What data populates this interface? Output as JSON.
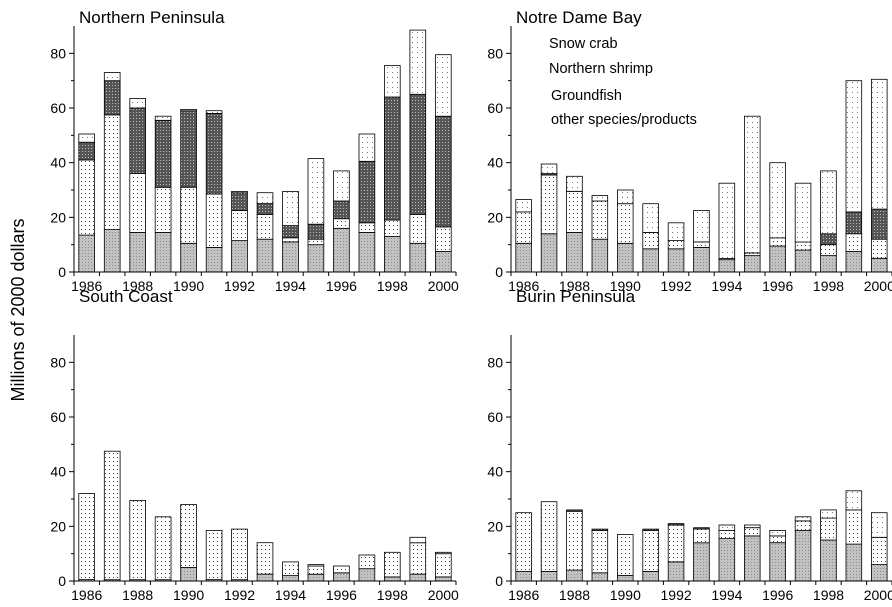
{
  "y_axis_label": "Millions of 2000 dollars",
  "legend": {
    "items": [
      "Snow crab",
      "Northern shrimp",
      "Groundfish",
      "other species/products"
    ]
  },
  "chart_data": [
    {
      "type": "bar",
      "stacked": true,
      "title": "Northern Peninsula",
      "categories": [
        "1986",
        "1987",
        "1988",
        "1989",
        "1990",
        "1991",
        "1992",
        "1993",
        "1994",
        "1995",
        "1996",
        "1997",
        "1998",
        "1999",
        "2000"
      ],
      "x_tick_labels": [
        "1986",
        "1988",
        "1990",
        "1992",
        "1994",
        "1996",
        "1998",
        "2000"
      ],
      "y_tick_labels": [
        "0",
        "20",
        "40",
        "60",
        "80"
      ],
      "ylim": [
        0,
        90
      ],
      "series": [
        {
          "name": "Groundfish",
          "values": [
            13.5,
            15.5,
            14.5,
            14.5,
            10.5,
            9,
            11.5,
            12,
            11,
            10,
            16,
            14.5,
            13,
            10.5,
            7.5
          ]
        },
        {
          "name": "other species/products",
          "values": [
            27.5,
            42,
            21.5,
            16.5,
            20.5,
            19.5,
            11,
            9,
            1.5,
            2,
            3.5,
            3.5,
            6,
            10.5,
            9
          ]
        },
        {
          "name": "Northern shrimp",
          "values": [
            6.5,
            12.5,
            24,
            24.5,
            28,
            29.5,
            6.5,
            4,
            4.5,
            5.5,
            6.5,
            22.5,
            45,
            44,
            40.5
          ]
        },
        {
          "name": "Snow crab",
          "values": [
            3,
            3,
            3.5,
            1.5,
            0.5,
            1,
            0.5,
            4,
            12.5,
            24,
            11,
            10,
            11.5,
            23.5,
            22.5
          ]
        }
      ]
    },
    {
      "type": "bar",
      "stacked": true,
      "title": "Notre Dame Bay",
      "categories": [
        "1986",
        "1987",
        "1988",
        "1989",
        "1990",
        "1991",
        "1992",
        "1993",
        "1994",
        "1995",
        "1996",
        "1997",
        "1998",
        "1999",
        "2000"
      ],
      "x_tick_labels": [
        "1986",
        "1988",
        "1990",
        "1992",
        "1994",
        "1996",
        "1998",
        "2000"
      ],
      "y_tick_labels": [
        "0",
        "20",
        "40",
        "60",
        "80"
      ],
      "ylim": [
        0,
        90
      ],
      "series": [
        {
          "name": "Groundfish",
          "values": [
            10.5,
            14,
            14.5,
            12,
            10.5,
            8.5,
            8.5,
            9,
            4.5,
            6,
            9.5,
            8,
            6,
            7.5,
            5
          ]
        },
        {
          "name": "other species/products",
          "values": [
            11.5,
            21.5,
            15,
            14,
            14.5,
            6,
            3,
            2,
            0.5,
            1,
            3,
            3,
            4,
            6.5,
            7
          ]
        },
        {
          "name": "Northern shrimp",
          "values": [
            0,
            0.5,
            0,
            0,
            0,
            0,
            0,
            0,
            0,
            0,
            0,
            0,
            4,
            8,
            11
          ]
        },
        {
          "name": "Snow crab",
          "values": [
            4.5,
            3.5,
            5.5,
            2,
            5,
            10.5,
            6.5,
            11.5,
            27.5,
            50,
            27.5,
            21.5,
            23,
            48,
            47.5
          ]
        }
      ]
    },
    {
      "type": "bar",
      "stacked": true,
      "title": "South Coast",
      "categories": [
        "1986",
        "1987",
        "1988",
        "1989",
        "1990",
        "1991",
        "1992",
        "1993",
        "1994",
        "1995",
        "1996",
        "1997",
        "1998",
        "1999",
        "2000"
      ],
      "x_tick_labels": [
        "1986",
        "1988",
        "1990",
        "1992",
        "1994",
        "1996",
        "1998",
        "2000"
      ],
      "y_tick_labels": [
        "0",
        "20",
        "40",
        "60",
        "80"
      ],
      "ylim": [
        0,
        90
      ],
      "series": [
        {
          "name": "Groundfish",
          "values": [
            0.5,
            0.5,
            0.5,
            0.5,
            5,
            0.5,
            0.5,
            2.5,
            2,
            2.5,
            3,
            4.5,
            1.5,
            2.5,
            1.5
          ]
        },
        {
          "name": "other species/products",
          "values": [
            31.5,
            47,
            29,
            23,
            23,
            18,
            18.5,
            11.5,
            5,
            3,
            2.5,
            5,
            9,
            11.5,
            8.5
          ]
        },
        {
          "name": "Northern shrimp",
          "values": [
            0,
            0,
            0,
            0,
            0,
            0,
            0,
            0,
            0,
            0,
            0,
            0,
            0,
            0,
            0
          ]
        },
        {
          "name": "Snow crab",
          "values": [
            0,
            0,
            0,
            0,
            0,
            0,
            0,
            0,
            0,
            0.5,
            0,
            0,
            0,
            2,
            0.5
          ]
        }
      ]
    },
    {
      "type": "bar",
      "stacked": true,
      "title": "Burin Peninsula",
      "categories": [
        "1986",
        "1987",
        "1988",
        "1989",
        "1990",
        "1991",
        "1992",
        "1993",
        "1994",
        "1995",
        "1996",
        "1997",
        "1998",
        "1999",
        "2000"
      ],
      "x_tick_labels": [
        "1986",
        "1988",
        "1990",
        "1992",
        "1994",
        "1996",
        "1998",
        "2000"
      ],
      "y_tick_labels": [
        "0",
        "20",
        "40",
        "60",
        "80"
      ],
      "ylim": [
        0,
        90
      ],
      "series": [
        {
          "name": "Groundfish",
          "values": [
            3.5,
            3.5,
            4,
            3,
            2,
            3.5,
            7,
            14,
            15.5,
            16.5,
            14,
            18.5,
            15,
            13.5,
            6
          ]
        },
        {
          "name": "other species/products",
          "values": [
            21.5,
            25.5,
            21.5,
            15.5,
            15,
            15,
            13.5,
            5,
            3,
            3,
            2.5,
            3.5,
            8,
            12.5,
            10
          ]
        },
        {
          "name": "Northern shrimp",
          "values": [
            0,
            0,
            0.5,
            0.5,
            0,
            0.5,
            0.5,
            0.5,
            0,
            0,
            0,
            0,
            0,
            0,
            0
          ]
        },
        {
          "name": "Snow crab",
          "values": [
            0,
            0,
            0,
            0,
            0,
            0,
            0,
            0,
            2,
            1,
            2,
            1.5,
            3,
            7,
            9
          ]
        }
      ]
    }
  ]
}
